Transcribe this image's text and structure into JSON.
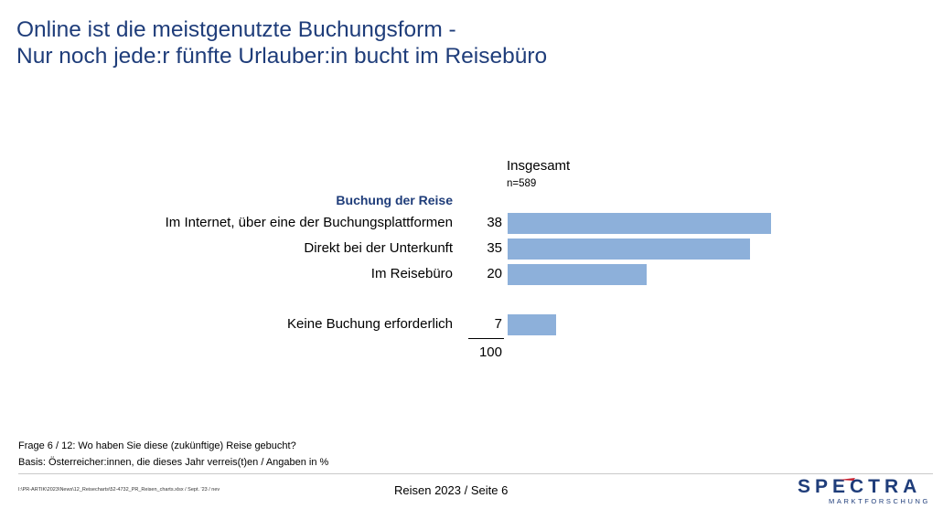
{
  "title": {
    "line1": "Online ist die meistgenutzte Buchungsform -",
    "line2": "Nur noch jede:r fünfte Urlauber:in bucht im Reisebüro"
  },
  "chart_data": {
    "type": "bar",
    "orientation": "horizontal",
    "column_header": "Insgesamt",
    "sample_size": "n=589",
    "section_label": "Buchung der Reise",
    "categories": [
      "Im Internet, über eine der Buchungsplattformen",
      "Direkt bei der Unterkunft",
      "Im Reisebüro",
      "Keine Buchung erforderlich"
    ],
    "values": [
      38,
      35,
      20,
      7
    ],
    "total": "100",
    "bar_color": "#8db0da",
    "xlim": [
      0,
      40
    ]
  },
  "notes": {
    "question": "Frage 6 / 12: Wo haben Sie diese (zukünftige) Reise gebucht?",
    "basis": "Basis: Österreicher:innen, die dieses Jahr verreis(t)en / Angaben in %"
  },
  "footer": {
    "filepath": "I:\\PR-ARTIK\\2023\\News\\12_Reisecharts\\52-4732_PR_Reisen_charts.xlsx / Sept. '23 / nev",
    "page": "Reisen 2023  /  Seite 6"
  },
  "logo": {
    "main": "SPECTRA",
    "sub": "MARKTFORSCHUNG"
  },
  "colors": {
    "title": "#1f3d7a",
    "bar": "#8db0da"
  }
}
